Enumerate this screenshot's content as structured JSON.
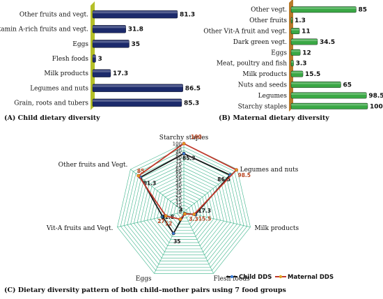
{
  "chart_data": [
    {
      "type": "bar",
      "orientation": "horizontal",
      "caption": "(A) Child dietary diversity",
      "categories": [
        "Other fruits and vegt.",
        "Vitamin A-rich fruits and vegt.",
        "Eggs",
        "Flesh foods",
        "Milk products",
        "Legumes and nuts",
        "Grain, roots and tubers"
      ],
      "values": [
        81.3,
        31.8,
        35,
        3,
        17.3,
        86.5,
        85.3
      ],
      "value_labels": [
        "81.3",
        "31.8",
        "35",
        "3",
        "17.3",
        "86.5",
        "85.3"
      ],
      "xlim": [
        0,
        100
      ],
      "grid": false,
      "color": "#1c2a6b"
    },
    {
      "type": "bar",
      "orientation": "horizontal",
      "caption": "(B) Maternal dietary diversity",
      "categories": [
        "Other vegt.",
        "Other fruits",
        "Other Vit-A fruit and vegt.",
        "Dark green vegt.",
        "Eggs",
        "Meat, poultry and fish",
        "Milk products",
        "Nuts and seeds",
        "Legumes",
        "Starchy staples"
      ],
      "values": [
        85,
        1.3,
        11,
        34.5,
        12,
        3.3,
        15.5,
        65,
        98.5,
        100
      ],
      "value_labels": [
        "85",
        "1.3",
        "11",
        "34.5",
        "12",
        "3.3",
        "15.5",
        "65",
        "98.5",
        "100"
      ],
      "xlim": [
        0,
        100
      ],
      "grid": false,
      "color": "#3aa845"
    },
    {
      "type": "radar",
      "caption": "(C) Dietary diversity pattern of both child–mother pairs using 7 food groups",
      "axes": [
        "Starchy staples",
        "Legumes and nuts",
        "Milk products",
        "Flesh foods",
        "Eggs",
        "Vit-A fruits and Vegt.",
        "Other fruits and Vegt."
      ],
      "ticks": [
        "100",
        "95",
        "90",
        "85",
        "80",
        "75",
        "70",
        "65",
        "60",
        "55",
        "50",
        "45",
        "40",
        "35",
        "30",
        "25",
        "20",
        "15",
        "10",
        "5",
        "0"
      ],
      "rlim": [
        0,
        100
      ],
      "grid": true,
      "legend_position": "bottom",
      "series": [
        {
          "name": "Child DDS",
          "values": [
            85.3,
            86.5,
            17.3,
            3,
            35,
            31.8,
            81.3
          ],
          "value_labels": [
            "85.3",
            "86.5",
            "17.3",
            "3",
            "35",
            "31.8",
            "81.3"
          ],
          "color": "#1a1a1a",
          "marker_color": "#3a7bd5"
        },
        {
          "name": "Maternal DDS",
          "values": [
            100,
            98.5,
            15.5,
            3.3,
            12,
            27,
            85
          ],
          "value_labels": [
            "100",
            "98.5",
            "15.5",
            "3.3",
            "12",
            "27",
            "85"
          ],
          "color": "#c0392b",
          "marker_color": "#e0a020"
        }
      ]
    }
  ]
}
